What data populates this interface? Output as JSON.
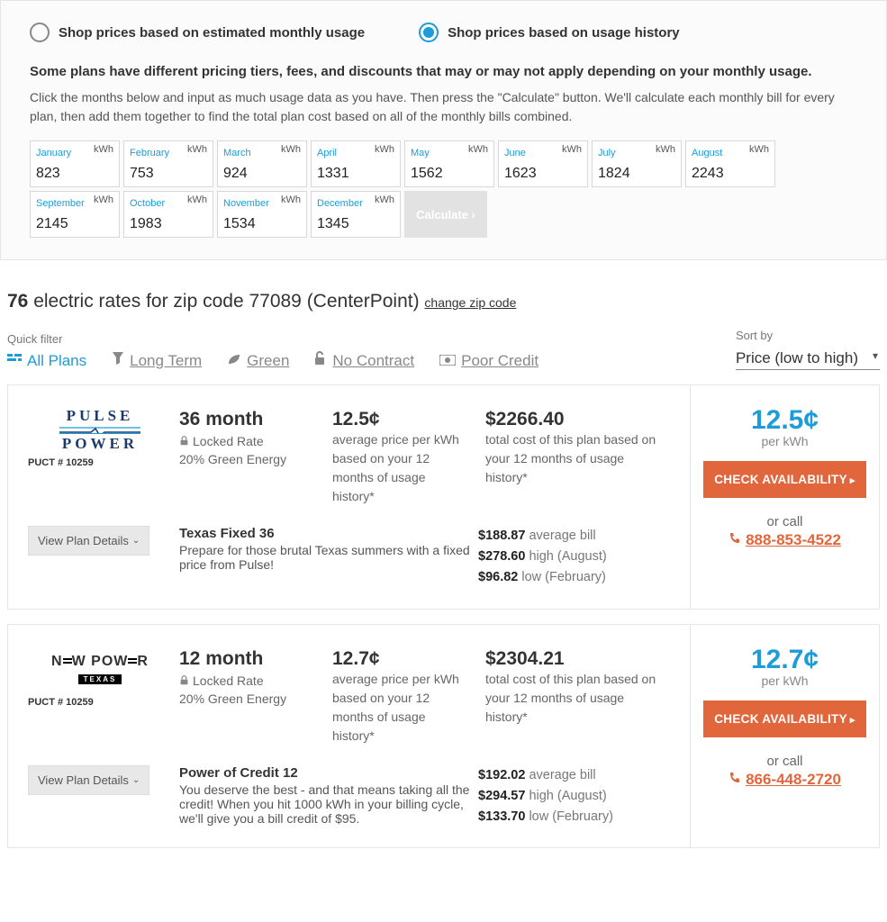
{
  "colors": {
    "accent": "#1e9cd7",
    "cta": "#e2663c",
    "muted": "#888"
  },
  "shopMode": {
    "estimated": "Shop prices based on estimated monthly usage",
    "history": "Shop prices based on usage history",
    "selected": "history"
  },
  "usagePanel": {
    "boldLine": "Some plans have different pricing tiers, fees, and discounts that may or may not apply depending on your monthly usage.",
    "desc": "Click the months below and input as much usage data as you have. Then press the \"Calculate\" button. We'll calculate each monthly bill for every plan, then add them together to find the total plan cost based on all of the monthly bills combined.",
    "unit": "kWh",
    "months": [
      {
        "label": "January",
        "value": "823"
      },
      {
        "label": "February",
        "value": "753"
      },
      {
        "label": "March",
        "value": "924"
      },
      {
        "label": "April",
        "value": "1331"
      },
      {
        "label": "May",
        "value": "1562"
      },
      {
        "label": "June",
        "value": "1623"
      },
      {
        "label": "July",
        "value": "1824"
      },
      {
        "label": "August",
        "value": "2243"
      },
      {
        "label": "September",
        "value": "2145"
      },
      {
        "label": "October",
        "value": "1983"
      },
      {
        "label": "November",
        "value": "1534"
      },
      {
        "label": "December",
        "value": "1345"
      }
    ],
    "calculate": "Calculate ›"
  },
  "results": {
    "count": "76",
    "line": " electric rates for zip code 77089 (CenterPoint) ",
    "changeZip": "change zip code"
  },
  "quickFilter": {
    "label": "Quick filter",
    "items": [
      {
        "label": "All Plans",
        "active": true
      },
      {
        "label": "Long Term"
      },
      {
        "label": "Green"
      },
      {
        "label": "No Contract"
      },
      {
        "label": "Poor Credit"
      }
    ]
  },
  "sort": {
    "label": "Sort by",
    "selected": "Price (low to high)"
  },
  "plans": [
    {
      "providerLogo": "pulse",
      "providerName": "PULSE POWER",
      "puct": "PUCT # 10259",
      "term": "36 month",
      "lockedRate": "Locked Rate",
      "green": "20% Green Energy",
      "avgPrice": "12.5¢",
      "avgPriceDesc": "average price per kWh based on your 12 months of usage history*",
      "totalCost": "$2266.40",
      "totalCostDesc": "total cost of this plan based on your 12 months of usage history*",
      "planName": "Texas Fixed 36",
      "planDesc": "Prepare for those brutal Texas summers with a fixed price from Pulse!",
      "avgBill": "$188.87",
      "avgBillLabel": "average bill",
      "highBill": "$278.60",
      "highBillLabel": "high (August)",
      "lowBill": "$96.82",
      "lowBillLabel": "low (February)",
      "sidePrice": "12.5¢",
      "perKwh": "per kWh",
      "cta": "CHECK AVAILABILITY",
      "orCall": "or call",
      "phone": "888-853-4522"
    },
    {
      "providerLogo": "newpower",
      "providerName": "NEW POWER",
      "puct": "PUCT # 10259",
      "term": "12 month",
      "lockedRate": "Locked Rate",
      "green": "20% Green Energy",
      "avgPrice": "12.7¢",
      "avgPriceDesc": "average price per kWh based on your 12 months of usage history*",
      "totalCost": "$2304.21",
      "totalCostDesc": "total cost of this plan based on your 12 months of usage history*",
      "planName": "Power of Credit 12",
      "planDesc": "You deserve the best - and that means taking all the credit! When you hit 1000 kWh in your billing cycle, we'll give you a bill credit of $95.",
      "avgBill": "$192.02",
      "avgBillLabel": "average bill",
      "highBill": "$294.57",
      "highBillLabel": "high (August)",
      "lowBill": "$133.70",
      "lowBillLabel": "low (February)",
      "sidePrice": "12.7¢",
      "perKwh": "per kWh",
      "cta": "CHECK AVAILABILITY",
      "orCall": "or call",
      "phone": "866-448-2720"
    }
  ],
  "viewPlanDetails": "View Plan Details"
}
